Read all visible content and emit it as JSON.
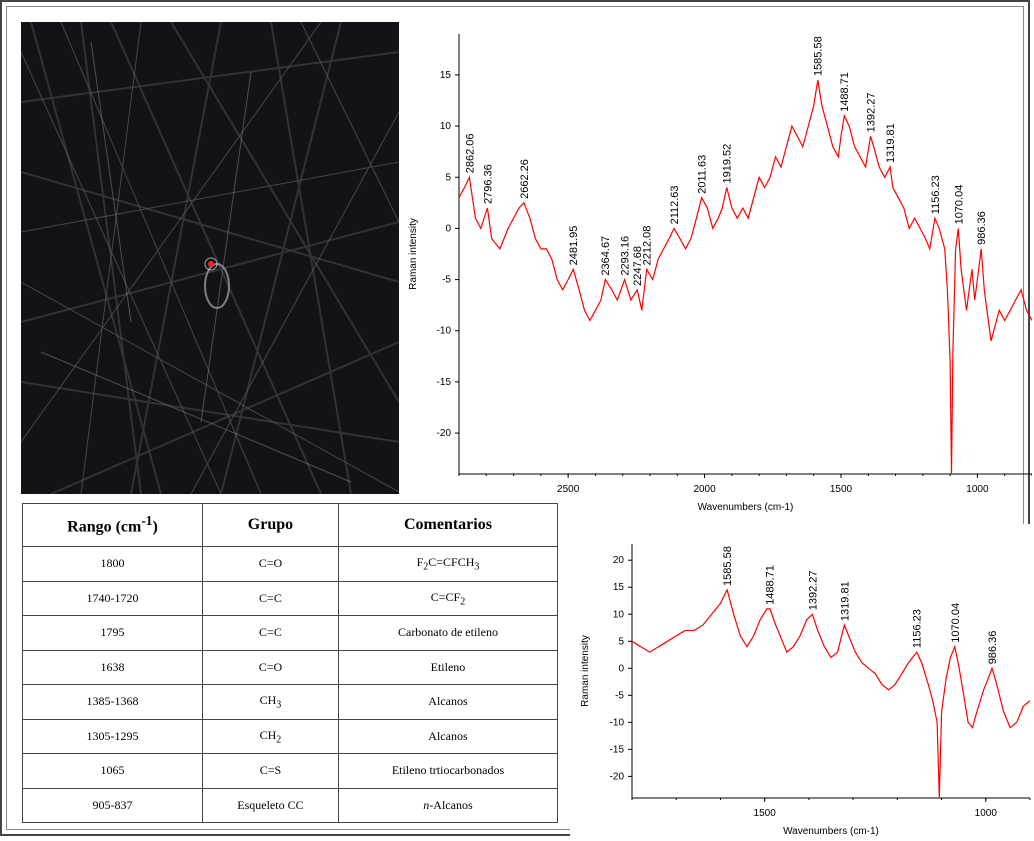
{
  "chart_data": [
    {
      "type": "line",
      "title": "",
      "xlabel": "Wavenumbers (cm-1)",
      "ylabel": "Raman intensity",
      "xlim": [
        2900,
        800
      ],
      "ylim": [
        -24,
        19
      ],
      "x_ticks": [
        "2500",
        "2000",
        "1500",
        "1000"
      ],
      "y_ticks": [
        "15",
        "10",
        "5",
        "0",
        "-5",
        "-10",
        "-15",
        "-20"
      ],
      "grid": false,
      "series": [
        {
          "color": "#ff0000",
          "points": [
            [
              2900,
              3
            ],
            [
              2880,
              4
            ],
            [
              2862,
              5
            ],
            [
              2840,
              1
            ],
            [
              2820,
              0
            ],
            [
              2796,
              2
            ],
            [
              2780,
              -1
            ],
            [
              2750,
              -2
            ],
            [
              2720,
              0
            ],
            [
              2700,
              1
            ],
            [
              2680,
              2
            ],
            [
              2662,
              2.5
            ],
            [
              2640,
              1
            ],
            [
              2620,
              -1
            ],
            [
              2600,
              -2
            ],
            [
              2580,
              -2
            ],
            [
              2560,
              -3
            ],
            [
              2540,
              -5
            ],
            [
              2520,
              -6
            ],
            [
              2500,
              -5
            ],
            [
              2481,
              -4
            ],
            [
              2460,
              -6
            ],
            [
              2440,
              -8
            ],
            [
              2420,
              -9
            ],
            [
              2400,
              -8
            ],
            [
              2380,
              -7
            ],
            [
              2364,
              -5
            ],
            [
              2340,
              -6
            ],
            [
              2320,
              -7
            ],
            [
              2293,
              -5
            ],
            [
              2270,
              -7
            ],
            [
              2247,
              -6
            ],
            [
              2230,
              -8
            ],
            [
              2212,
              -4
            ],
            [
              2190,
              -5
            ],
            [
              2170,
              -3
            ],
            [
              2150,
              -2
            ],
            [
              2130,
              -1
            ],
            [
              2112,
              0
            ],
            [
              2090,
              -1
            ],
            [
              2070,
              -2
            ],
            [
              2050,
              -1
            ],
            [
              2030,
              1
            ],
            [
              2011,
              3
            ],
            [
              1990,
              2
            ],
            [
              1970,
              0
            ],
            [
              1950,
              1
            ],
            [
              1935,
              2
            ],
            [
              1919,
              4
            ],
            [
              1900,
              2
            ],
            [
              1880,
              1
            ],
            [
              1860,
              2
            ],
            [
              1840,
              1
            ],
            [
              1820,
              3
            ],
            [
              1800,
              5
            ],
            [
              1780,
              4
            ],
            [
              1760,
              5
            ],
            [
              1740,
              7
            ],
            [
              1720,
              6
            ],
            [
              1700,
              8
            ],
            [
              1680,
              10
            ],
            [
              1660,
              9
            ],
            [
              1640,
              8
            ],
            [
              1620,
              10
            ],
            [
              1600,
              12
            ],
            [
              1585,
              14.5
            ],
            [
              1570,
              12
            ],
            [
              1550,
              10
            ],
            [
              1530,
              8
            ],
            [
              1510,
              7
            ],
            [
              1500,
              9
            ],
            [
              1488,
              11
            ],
            [
              1470,
              10
            ],
            [
              1450,
              8
            ],
            [
              1430,
              7
            ],
            [
              1410,
              6
            ],
            [
              1392,
              9
            ],
            [
              1380,
              8
            ],
            [
              1360,
              6
            ],
            [
              1340,
              5
            ],
            [
              1320,
              6
            ],
            [
              1310,
              4
            ],
            [
              1290,
              3
            ],
            [
              1270,
              2
            ],
            [
              1250,
              0
            ],
            [
              1230,
              1
            ],
            [
              1210,
              0
            ],
            [
              1190,
              -1
            ],
            [
              1175,
              -2
            ],
            [
              1156,
              1
            ],
            [
              1140,
              0
            ],
            [
              1120,
              -2
            ],
            [
              1110,
              -6
            ],
            [
              1100,
              -13
            ],
            [
              1095,
              -24
            ],
            [
              1090,
              -12
            ],
            [
              1080,
              -2
            ],
            [
              1070,
              0
            ],
            [
              1060,
              -4
            ],
            [
              1050,
              -6
            ],
            [
              1040,
              -8
            ],
            [
              1030,
              -6
            ],
            [
              1020,
              -4
            ],
            [
              1010,
              -7
            ],
            [
              1000,
              -5
            ],
            [
              986,
              -2
            ],
            [
              975,
              -6
            ],
            [
              960,
              -9
            ],
            [
              950,
              -11
            ],
            [
              940,
              -10
            ],
            [
              930,
              -9
            ],
            [
              920,
              -8
            ],
            [
              900,
              -9
            ],
            [
              880,
              -8
            ],
            [
              860,
              -7
            ],
            [
              840,
              -6
            ],
            [
              820,
              -8
            ],
            [
              800,
              -9
            ]
          ]
        }
      ],
      "annotations": [
        "2862.06",
        "2796.36",
        "2662.26",
        "2481.95",
        "2364.67",
        "2293.16",
        "2247.68",
        "2212.08",
        "2112.63",
        "2011.63",
        "1919.52",
        "1585.58",
        "1488.71",
        "1392.27",
        "1319.81",
        "1156.23",
        "1070.04",
        "986.36"
      ]
    },
    {
      "type": "line",
      "title": "",
      "xlabel": "Wavenumbers (cm-1)",
      "ylabel": "Raman intensity",
      "xlim": [
        1800,
        900
      ],
      "ylim": [
        -24,
        23
      ],
      "x_ticks": [
        "1500",
        "1000"
      ],
      "y_ticks": [
        "20",
        "15",
        "10",
        "5",
        "0",
        "-5",
        "-10",
        "-15",
        "-20"
      ],
      "grid": false,
      "series": [
        {
          "color": "#ff0000",
          "points": [
            [
              1800,
              5
            ],
            [
              1780,
              4
            ],
            [
              1760,
              3
            ],
            [
              1740,
              4
            ],
            [
              1720,
              5
            ],
            [
              1700,
              6
            ],
            [
              1680,
              7
            ],
            [
              1660,
              7
            ],
            [
              1640,
              8
            ],
            [
              1620,
              10
            ],
            [
              1600,
              12
            ],
            [
              1585,
              14.5
            ],
            [
              1570,
              10
            ],
            [
              1555,
              6
            ],
            [
              1540,
              4
            ],
            [
              1525,
              6
            ],
            [
              1510,
              9
            ],
            [
              1495,
              11
            ],
            [
              1488,
              11
            ],
            [
              1475,
              8
            ],
            [
              1460,
              5
            ],
            [
              1450,
              3
            ],
            [
              1435,
              4
            ],
            [
              1420,
              6
            ],
            [
              1405,
              9
            ],
            [
              1392,
              10
            ],
            [
              1380,
              7
            ],
            [
              1365,
              4
            ],
            [
              1350,
              2
            ],
            [
              1335,
              3
            ],
            [
              1320,
              8
            ],
            [
              1310,
              6
            ],
            [
              1295,
              3
            ],
            [
              1280,
              1
            ],
            [
              1265,
              0
            ],
            [
              1250,
              -1
            ],
            [
              1235,
              -3
            ],
            [
              1220,
              -4
            ],
            [
              1205,
              -3
            ],
            [
              1190,
              -1
            ],
            [
              1175,
              1
            ],
            [
              1156,
              3
            ],
            [
              1145,
              1
            ],
            [
              1130,
              -3
            ],
            [
              1120,
              -6
            ],
            [
              1110,
              -10
            ],
            [
              1105,
              -24
            ],
            [
              1100,
              -8
            ],
            [
              1090,
              -2
            ],
            [
              1080,
              2
            ],
            [
              1070,
              4
            ],
            [
              1060,
              0
            ],
            [
              1050,
              -5
            ],
            [
              1040,
              -10
            ],
            [
              1030,
              -11
            ],
            [
              1020,
              -8
            ],
            [
              1005,
              -4
            ],
            [
              995,
              -2
            ],
            [
              986,
              0
            ],
            [
              975,
              -3
            ],
            [
              960,
              -8
            ],
            [
              945,
              -11
            ],
            [
              930,
              -10
            ],
            [
              915,
              -7
            ],
            [
              900,
              -6
            ]
          ]
        }
      ],
      "annotations": [
        "1585.58",
        "1488.71",
        "1392.27",
        "1319.81",
        "1156.23",
        "1070.04",
        "986.36"
      ]
    }
  ],
  "table": {
    "headers": [
      "Rango (cm",
      "-1",
      ")",
      "Grupo",
      "Comentarios"
    ],
    "rows": [
      {
        "range": "1800",
        "group_main": "C=O",
        "group_sub": "",
        "comment_main": "F",
        "comment_parts": [
          "2",
          "C=CFCH",
          "3"
        ]
      },
      {
        "range": "1740-1720",
        "group_main": "C=C",
        "group_sub": "",
        "comment_main": "C=CF",
        "comment_parts": [
          "2",
          "",
          ""
        ]
      },
      {
        "range": "1795",
        "group_main": "C=C",
        "group_sub": "",
        "comment_main": "Carbonato de etileno",
        "comment_parts": [
          "",
          "",
          ""
        ]
      },
      {
        "range": "1638",
        "group_main": "C=O",
        "group_sub": "",
        "comment_main": "Etileno",
        "comment_parts": [
          "",
          "",
          ""
        ]
      },
      {
        "range": "1385-1368",
        "group_main": "CH",
        "group_sub": "3",
        "comment_main": "Alcanos",
        "comment_parts": [
          "",
          "",
          ""
        ]
      },
      {
        "range": "1305-1295",
        "group_main": "CH",
        "group_sub": "2",
        "comment_main": "Alcanos",
        "comment_parts": [
          "",
          "",
          ""
        ]
      },
      {
        "range": "1065",
        "group_main": "C=S",
        "group_sub": "",
        "comment_main": "Etileno trtiocarbonados",
        "comment_parts": [
          "",
          "",
          ""
        ]
      },
      {
        "range": "905-837",
        "group_main": "Esqueleto CC",
        "group_sub": "",
        "comment_main": "-Alcanos",
        "comment_parts": [
          "n",
          "",
          ""
        ]
      }
    ]
  }
}
